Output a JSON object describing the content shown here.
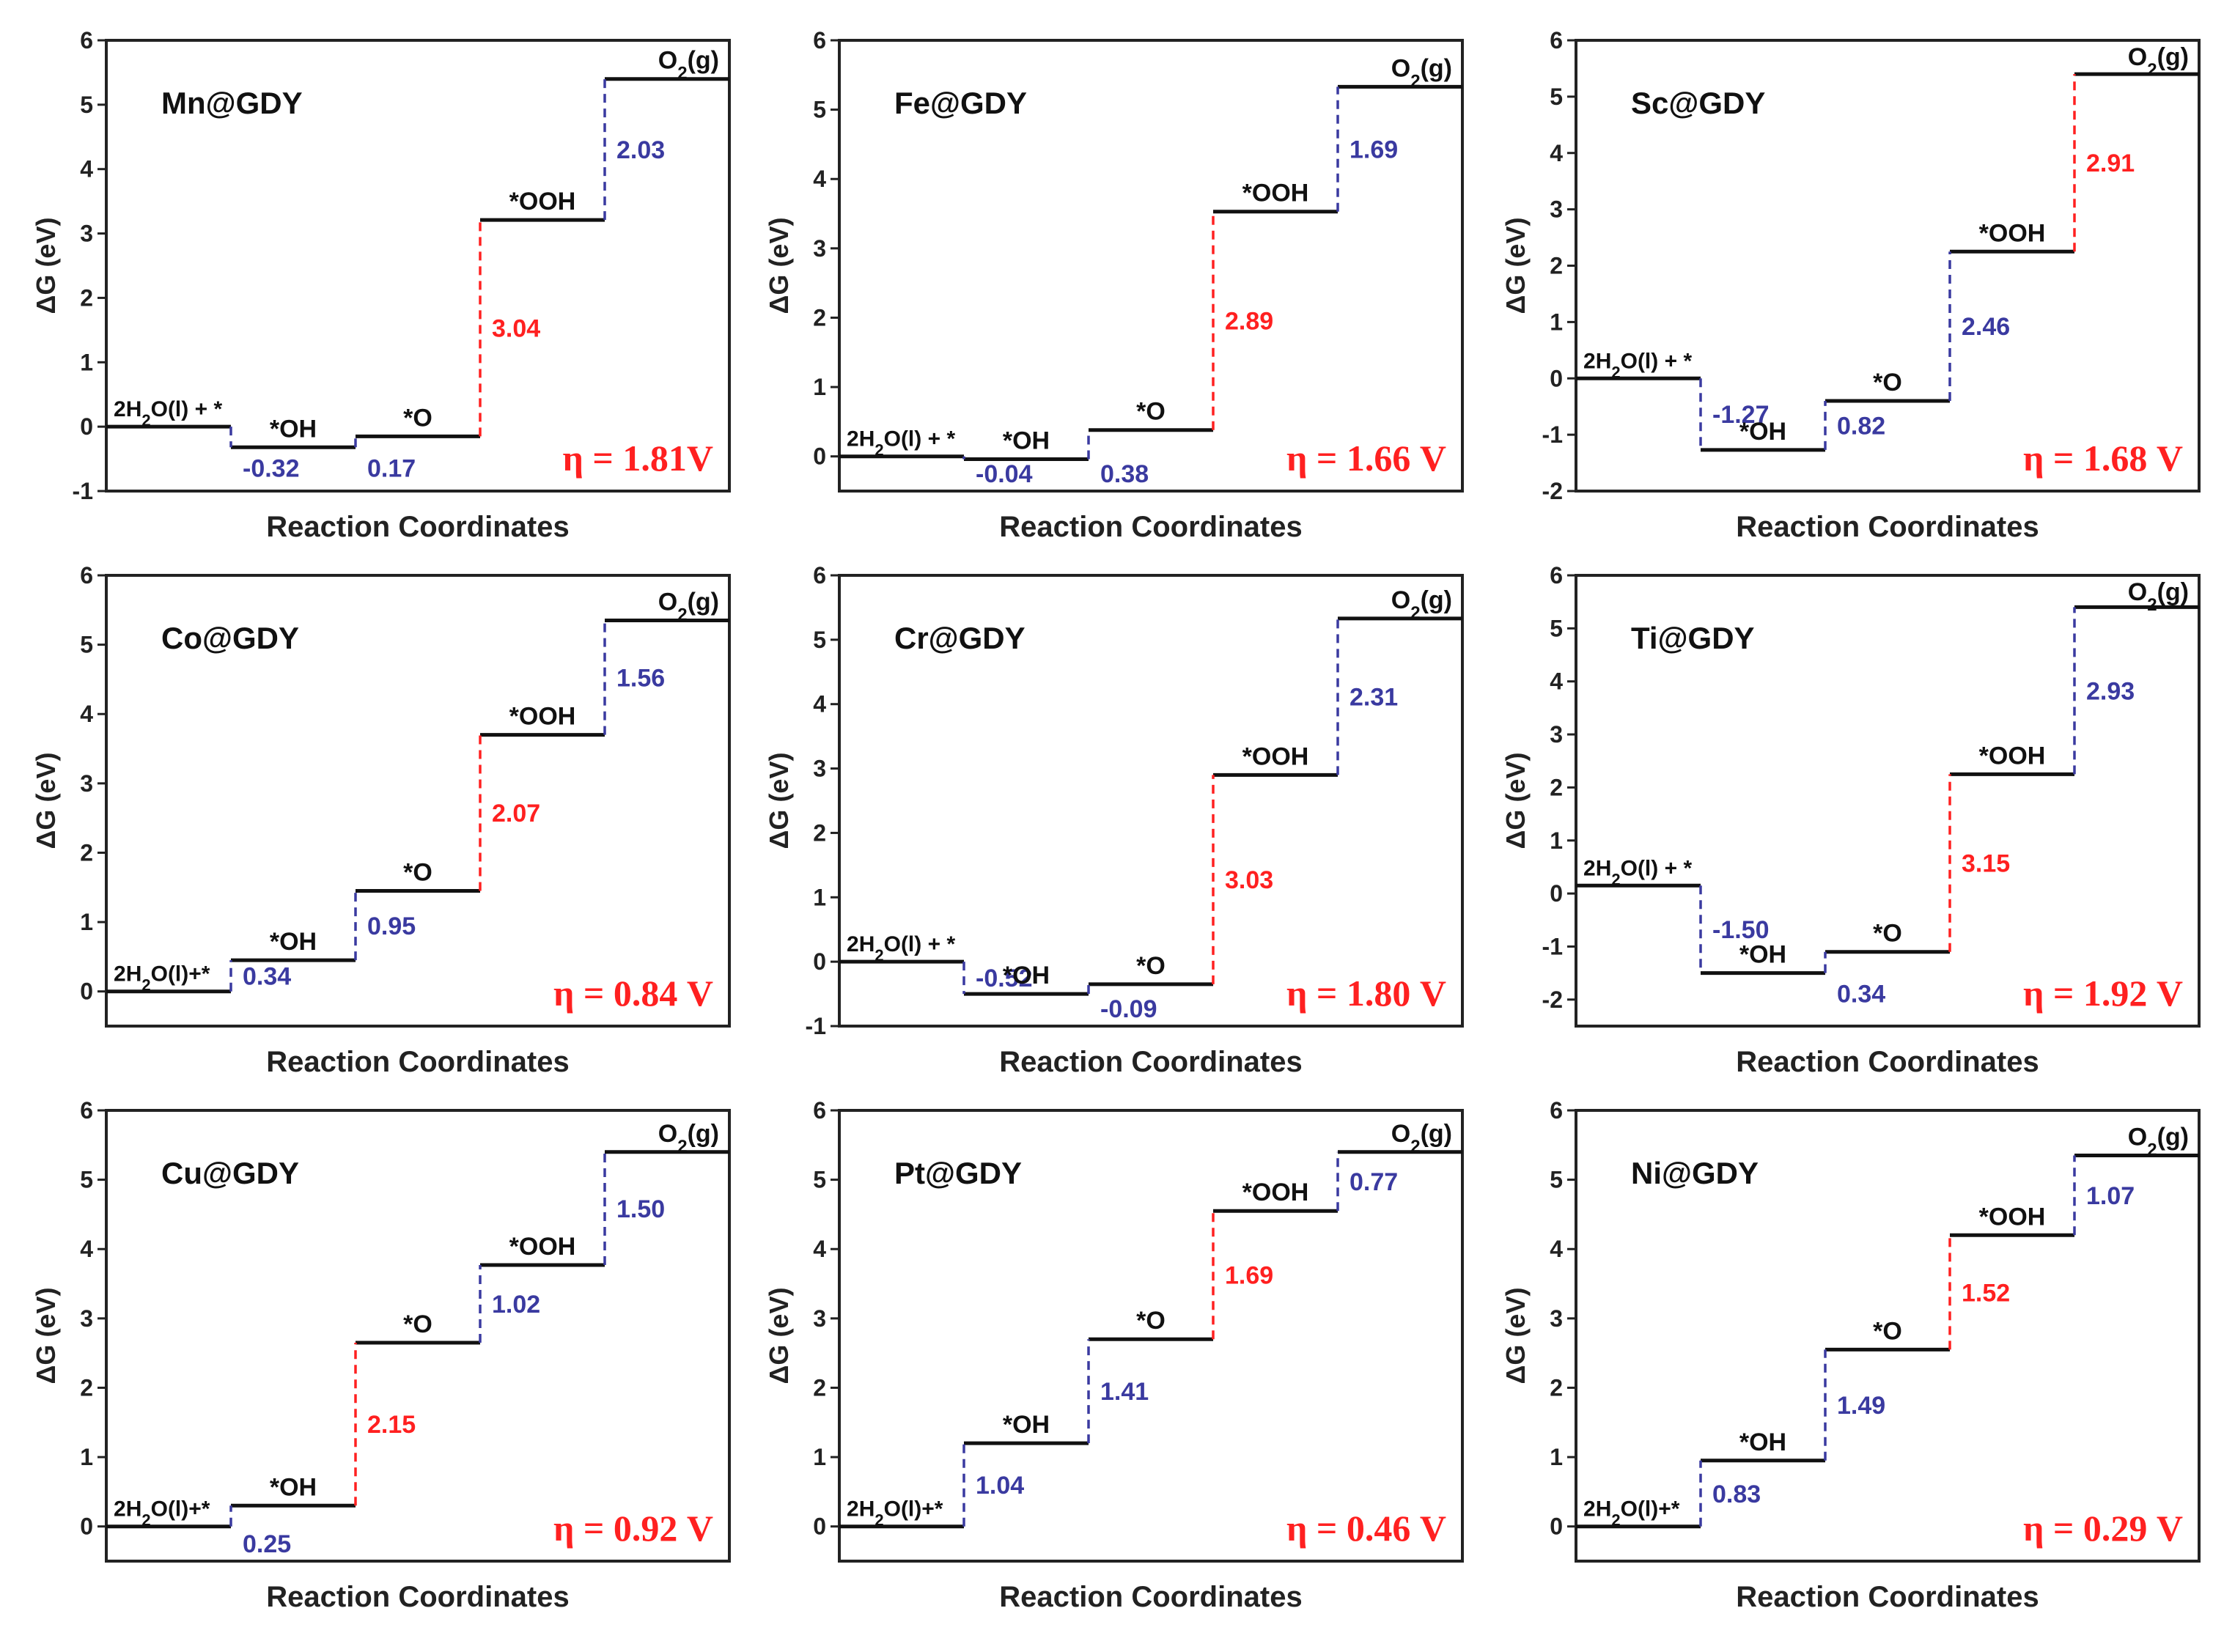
{
  "colors": {
    "potential_determining": "#ff2020",
    "other_step": "#3a3aa0",
    "level": "#111111",
    "eta": "#ff2020"
  },
  "chart_data": [
    {
      "type": "line",
      "title": "Mn@GDY",
      "xlabel": "Reaction Coordinates",
      "ylabel": "ΔG (eV)",
      "ylim": [
        -1,
        6
      ],
      "yticks": [
        "-1",
        "0",
        "1",
        "2",
        "3",
        "4",
        "5",
        "6"
      ],
      "states": [
        "2H2O(l) + *",
        "*OH",
        "*O",
        "*OOH",
        "O2(g)"
      ],
      "levels": [
        0,
        -0.32,
        -0.15,
        3.21,
        5.4
      ],
      "steps": [
        "-0.32",
        "0.17",
        "3.04",
        "2.03"
      ],
      "pds": 2,
      "eta": "η = 1.81V"
    },
    {
      "type": "line",
      "title": "Fe@GDY",
      "xlabel": "Reaction Coordinates",
      "ylabel": "ΔG (eV)",
      "ylim": [
        -0.5,
        6
      ],
      "yticks": [
        "0",
        "1",
        "2",
        "3",
        "4",
        "5",
        "6"
      ],
      "states": [
        "2H2O(l) + *",
        "*OH",
        "*O",
        "*OOH",
        "O2(g)"
      ],
      "levels": [
        0,
        -0.04,
        0.38,
        3.53,
        5.33
      ],
      "steps": [
        "-0.04",
        "0.38",
        "2.89",
        "1.69"
      ],
      "pds": 2,
      "eta": "η = 1.66 V"
    },
    {
      "type": "line",
      "title": "Sc@GDY",
      "xlabel": "Reaction Coordinates",
      "ylabel": "ΔG (eV)",
      "ylim": [
        -2,
        6
      ],
      "yticks": [
        "-2",
        "-1",
        "0",
        "1",
        "2",
        "3",
        "4",
        "5",
        "6"
      ],
      "states": [
        "2H2O(l) + *",
        "*OH",
        "*O",
        "*OOH",
        "O2(g)"
      ],
      "levels": [
        0,
        -1.27,
        -0.4,
        2.25,
        5.4
      ],
      "steps": [
        "-1.27",
        "0.82",
        "2.46",
        "2.91"
      ],
      "pds": 3,
      "eta": "η = 1.68 V"
    },
    {
      "type": "line",
      "title": "Co@GDY",
      "xlabel": "Reaction Coordinates",
      "ylabel": "ΔG (eV)",
      "ylim": [
        -0.5,
        6
      ],
      "yticks": [
        "0",
        "1",
        "2",
        "3",
        "4",
        "5",
        "6"
      ],
      "states": [
        "2H2O(l)+*",
        "*OH",
        "*O",
        "*OOH",
        "O2(g)"
      ],
      "levels": [
        0,
        0.45,
        1.45,
        3.7,
        5.35
      ],
      "steps": [
        "0.34",
        "0.95",
        "2.07",
        "1.56"
      ],
      "pds": 2,
      "eta": "η = 0.84 V"
    },
    {
      "type": "line",
      "title": "Cr@GDY",
      "xlabel": "Reaction Coordinates",
      "ylabel": "ΔG (eV)",
      "ylim": [
        -1,
        6
      ],
      "yticks": [
        "-1",
        "0",
        "1",
        "2",
        "3",
        "4",
        "5",
        "6"
      ],
      "states": [
        "2H2O(l) + *",
        "*OH",
        "*O",
        "*OOH",
        "O2(g)"
      ],
      "levels": [
        0,
        -0.5,
        -0.35,
        2.9,
        5.33
      ],
      "steps": [
        "-0.52",
        "-0.09",
        "3.03",
        "2.31"
      ],
      "pds": 2,
      "eta": "η = 1.80 V"
    },
    {
      "type": "line",
      "title": "Ti@GDY",
      "xlabel": "Reaction Coordinates",
      "ylabel": "ΔG (eV)",
      "ylim": [
        -2.5,
        6
      ],
      "yticks": [
        "-2",
        "-1",
        "0",
        "1",
        "2",
        "3",
        "4",
        "5",
        "6"
      ],
      "states": [
        "2H2O(l) + *",
        "*OH",
        "*O",
        "*OOH",
        "O2(g)"
      ],
      "levels": [
        0.15,
        -1.5,
        -1.1,
        2.25,
        5.4
      ],
      "steps": [
        "-1.50",
        "0.34",
        "3.15",
        "2.93"
      ],
      "pds": 2,
      "eta": "η = 1.92 V"
    },
    {
      "type": "line",
      "title": "Cu@GDY",
      "xlabel": "Reaction Coordinates",
      "ylabel": "ΔG (eV)",
      "ylim": [
        -0.5,
        6
      ],
      "yticks": [
        "0",
        "1",
        "2",
        "3",
        "4",
        "5",
        "6"
      ],
      "states": [
        "2H2O(l)+*",
        "*OH",
        "*O",
        "*OOH",
        "O2(g)"
      ],
      "levels": [
        0,
        0.3,
        2.65,
        3.77,
        5.4
      ],
      "steps": [
        "0.25",
        "2.15",
        "1.02",
        "1.50"
      ],
      "pds": 1,
      "eta": "η = 0.92 V"
    },
    {
      "type": "line",
      "title": "Pt@GDY",
      "xlabel": "Reaction Coordinates",
      "ylabel": "ΔG (eV)",
      "ylim": [
        -0.5,
        6
      ],
      "yticks": [
        "0",
        "1",
        "2",
        "3",
        "4",
        "5",
        "6"
      ],
      "states": [
        "2H2O(l)+*",
        "*OH",
        "*O",
        "*OOH",
        "O2(g)"
      ],
      "levels": [
        0,
        1.2,
        2.7,
        4.55,
        5.4
      ],
      "steps": [
        "1.04",
        "1.41",
        "1.69",
        "0.77"
      ],
      "pds": 2,
      "eta": "η = 0.46 V"
    },
    {
      "type": "line",
      "title": "Ni@GDY",
      "xlabel": "Reaction Coordinates",
      "ylabel": "ΔG (eV)",
      "ylim": [
        -0.5,
        6
      ],
      "yticks": [
        "0",
        "1",
        "2",
        "3",
        "4",
        "5",
        "6"
      ],
      "states": [
        "2H2O(l)+*",
        "*OH",
        "*O",
        "*OOH",
        "O2(g)"
      ],
      "levels": [
        0,
        0.95,
        2.55,
        4.2,
        5.35
      ],
      "steps": [
        "0.83",
        "1.49",
        "1.52",
        "1.07"
      ],
      "pds": 2,
      "eta": "η = 0.29 V"
    }
  ]
}
